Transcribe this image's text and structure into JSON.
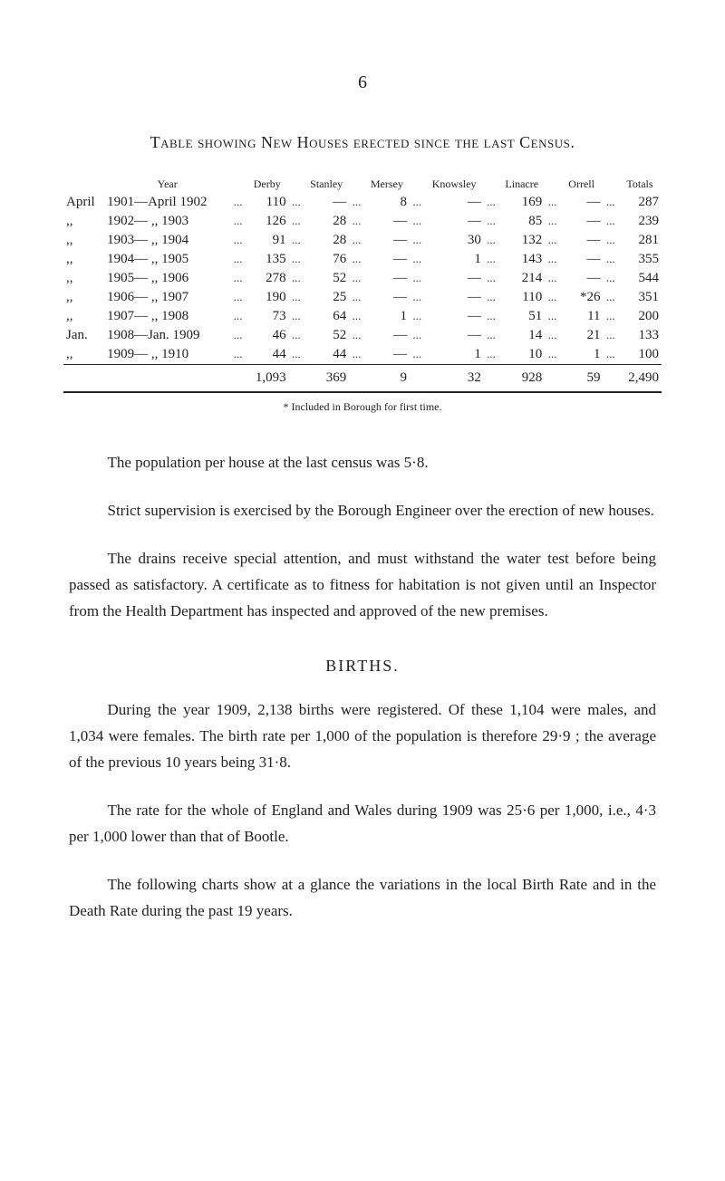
{
  "page_number": "6",
  "table_title": "Table showing New Houses erected since the last Census.",
  "headers": {
    "year": "Year",
    "derby": "Derby",
    "stanley": "Stanley",
    "mersey": "Mersey",
    "knowsley": "Knowsley",
    "linacre": "Linacre",
    "orrell": "Orrell",
    "totals": "Totals"
  },
  "rows": [
    {
      "month": "April",
      "year_label": "1901—April 1902",
      "derby": "110",
      "stanley": "—",
      "mersey": "8",
      "knowsley": "—",
      "linacre": "169",
      "orrell": "—",
      "totals": "287"
    },
    {
      "month": ",,",
      "year_label": "1902—  ,,    1903",
      "derby": "126",
      "stanley": "28",
      "mersey": "—",
      "knowsley": "—",
      "linacre": "85",
      "orrell": "—",
      "totals": "239"
    },
    {
      "month": ",,",
      "year_label": "1903—  ,,    1904",
      "derby": "91",
      "stanley": "28",
      "mersey": "—",
      "knowsley": "30",
      "linacre": "132",
      "orrell": "—",
      "totals": "281"
    },
    {
      "month": ",,",
      "year_label": "1904—  ,,    1905",
      "derby": "135",
      "stanley": "76",
      "mersey": "—",
      "knowsley": "1",
      "linacre": "143",
      "orrell": "—",
      "totals": "355"
    },
    {
      "month": ",,",
      "year_label": "1905—  ,,    1906",
      "derby": "278",
      "stanley": "52",
      "mersey": "—",
      "knowsley": "—",
      "linacre": "214",
      "orrell": "—",
      "totals": "544"
    },
    {
      "month": ",,",
      "year_label": "1906—  ,,    1907",
      "derby": "190",
      "stanley": "25",
      "mersey": "—",
      "knowsley": "—",
      "linacre": "110",
      "orrell": "*26",
      "totals": "351"
    },
    {
      "month": ",,",
      "year_label": "1907—  ,,    1908",
      "derby": "73",
      "stanley": "64",
      "mersey": "1",
      "knowsley": "—",
      "linacre": "51",
      "orrell": "11",
      "totals": "200"
    },
    {
      "month": "Jan.",
      "year_label": "1908—Jan.  1909",
      "derby": "46",
      "stanley": "52",
      "mersey": "—",
      "knowsley": "—",
      "linacre": "14",
      "orrell": "21",
      "totals": "133"
    },
    {
      "month": ",,",
      "year_label": "1909—  ,,    1910",
      "derby": "44",
      "stanley": "44",
      "mersey": "—",
      "knowsley": "1",
      "linacre": "10",
      "orrell": "1",
      "totals": "100"
    }
  ],
  "totals": {
    "derby": "1,093",
    "stanley": "369",
    "mersey": "9",
    "knowsley": "32",
    "linacre": "928",
    "orrell": "59",
    "totals": "2,490"
  },
  "dots": "...",
  "footnote": "* Included in Borough for first time.",
  "para1": "The population per house at the last census was 5·8.",
  "para2": "Strict supervision is exercised by the Borough Engineer over the erection of new houses.",
  "para3": "The drains receive special attention, and must withstand the water test before being passed as satisfactory. A certificate as to fitness for habitation is not given until an Inspector from the Health Department has inspected and approved of the new premises.",
  "births_heading": "BIRTHS.",
  "para4": "During the year 1909, 2,138 births were registered. Of these 1,104 were males, and 1,034 were females. The birth rate per 1,000 of the population is therefore 29·9 ; the average of the previous 10 years being 31·8.",
  "para5": "The rate for the whole of England and Wales during 1909 was 25·6 per 1,000, i.e., 4·3 per 1,000 lower than that of Bootle.",
  "para6": "The following charts show at a glance the variations in the local Birth Rate and in the Death Rate during the past 19 years."
}
